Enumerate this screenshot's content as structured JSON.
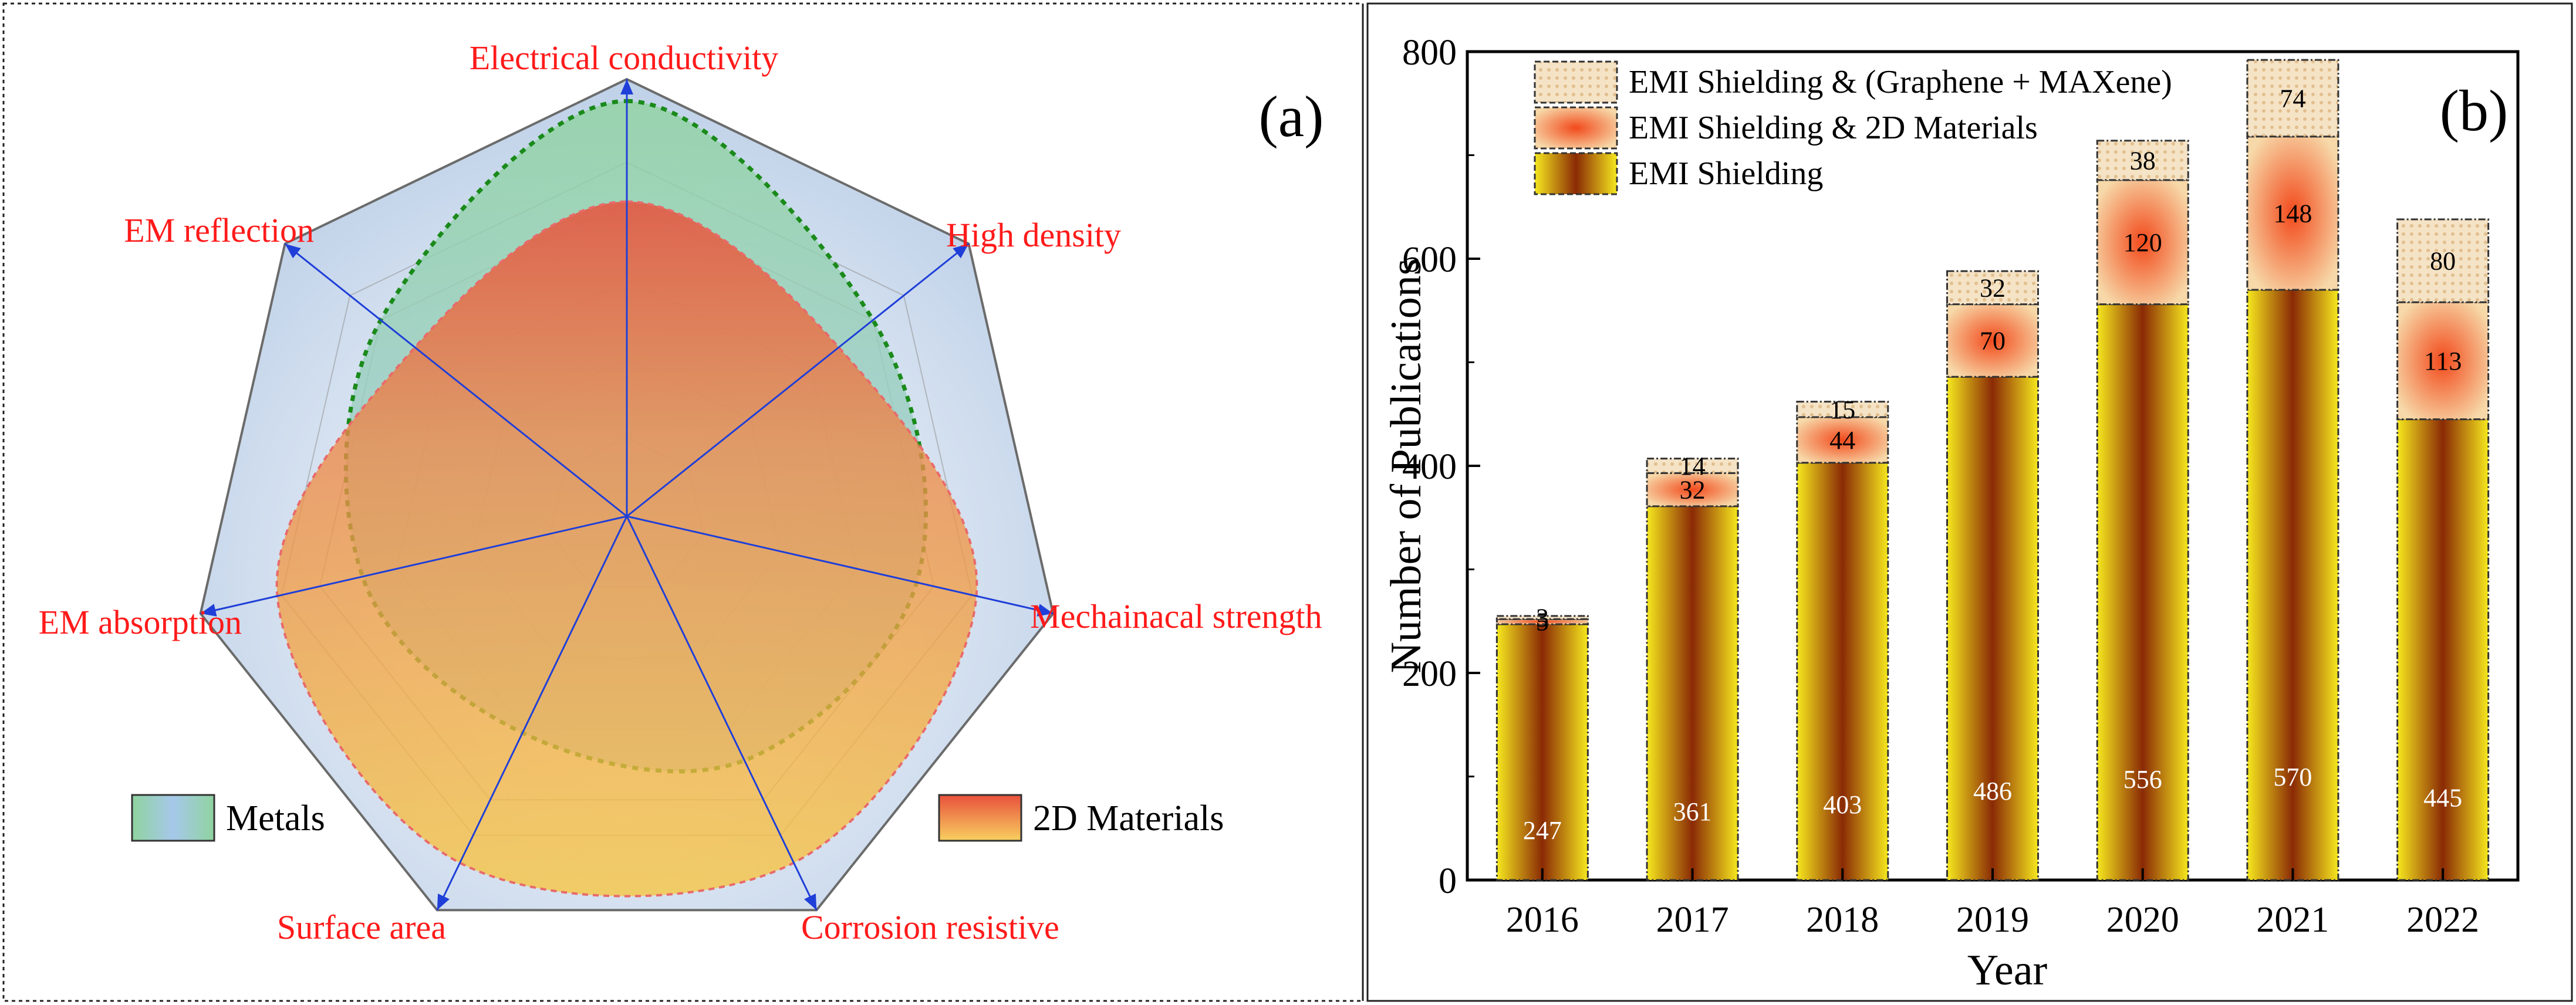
{
  "panel_a": {
    "tag": "(a)",
    "axes": [
      "Electrical conductivity",
      "High density",
      "Mechainacal strength",
      "Corrosion resistive",
      "Surface area",
      "EM absorption",
      "EM reflection"
    ],
    "legend": [
      {
        "label": "Metals",
        "color": "#9fd8a8"
      },
      {
        "label": "2D Materials",
        "color": "#f2a24e"
      }
    ]
  },
  "panel_b": {
    "tag": "(b)",
    "legend": [
      {
        "label": "EMI Shielding & (Graphene + MAXene)",
        "color": "#f2d9b8"
      },
      {
        "label": "EMI Shielding & 2D Materials",
        "color": "#f26a2a"
      },
      {
        "label": "EMI Shielding",
        "color": "#f5e020"
      }
    ]
  },
  "chart_data": [
    {
      "type": "radar",
      "title": "",
      "categories": [
        "Electrical conductivity",
        "High density",
        "Mechainacal strength",
        "Corrosion resistive",
        "Surface area",
        "EM absorption",
        "EM reflection"
      ],
      "rmax": 1,
      "series": [
        {
          "name": "Metals",
          "values": [
            0.95,
            0.72,
            0.68,
            0.62,
            0.55,
            0.62,
            0.72
          ]
        },
        {
          "name": "2D Materials",
          "values": [
            0.72,
            0.62,
            0.82,
            0.88,
            0.88,
            0.82,
            0.62
          ]
        }
      ],
      "legend": [
        "Metals",
        "2D Materials"
      ]
    },
    {
      "type": "bar",
      "stacked": true,
      "title": "",
      "xlabel": "Year",
      "ylabel": "Number of Publications",
      "categories": [
        "2016",
        "2017",
        "2018",
        "2019",
        "2020",
        "2021",
        "2022"
      ],
      "ylim": [
        0,
        800
      ],
      "yticks": [
        0,
        200,
        400,
        600,
        800
      ],
      "series": [
        {
          "name": "EMI Shielding",
          "values": [
            247,
            361,
            403,
            486,
            556,
            570,
            445
          ]
        },
        {
          "name": "EMI Shielding & 2D Materials",
          "values": [
            5,
            32,
            44,
            70,
            120,
            148,
            113
          ]
        },
        {
          "name": "EMI Shielding & (Graphene + MAXene)",
          "values": [
            3,
            14,
            15,
            32,
            38,
            74,
            80
          ]
        }
      ]
    }
  ]
}
